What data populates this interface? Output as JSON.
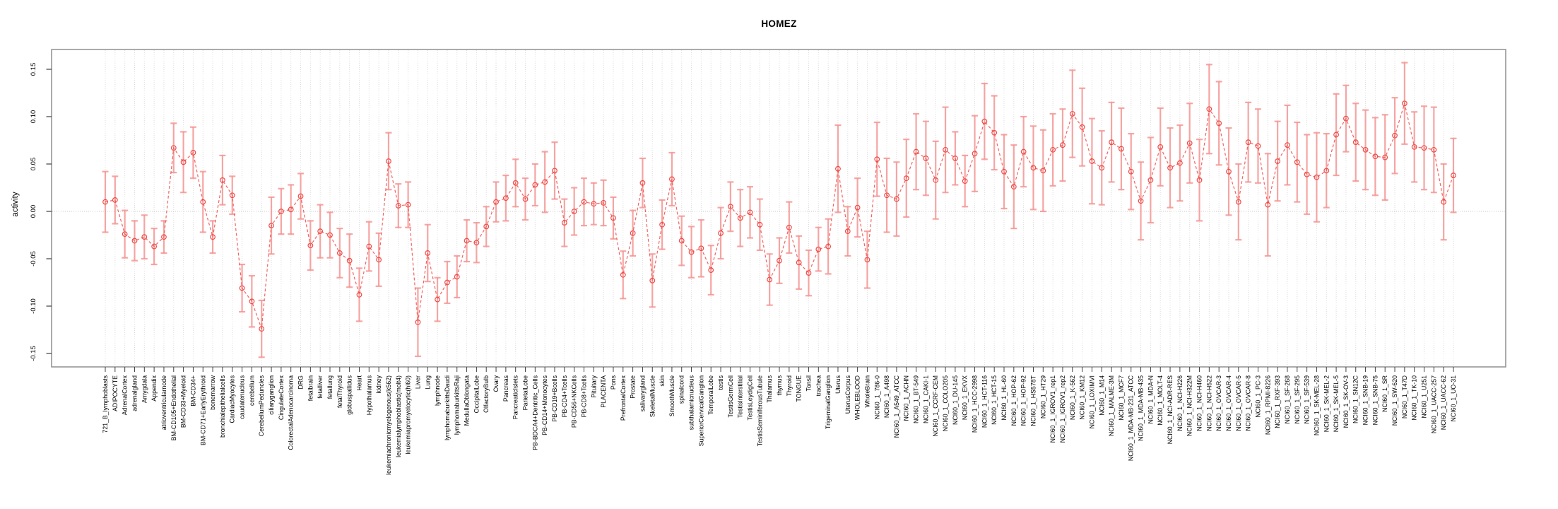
{
  "title": "HOMEZ",
  "y_axis_label": "activity",
  "chart_data": {
    "type": "line",
    "subtype": "points-with-error-bars",
    "title": "HOMEZ",
    "xlabel": "",
    "ylabel": "activity",
    "ylim": [
      -0.17,
      0.17
    ],
    "y_ticks": [
      -0.15,
      -0.1,
      -0.05,
      0.0,
      0.05,
      0.1,
      0.15
    ],
    "y_tick_labels": [
      "-0.15",
      "-0.10",
      "-0.05",
      "0.00",
      "0.05",
      "0.10",
      "0.15"
    ],
    "grid": "vertical dotted line per category; dotted horizontal line at 0",
    "legend": "none",
    "marker": "open-circle",
    "line_style": "dashed",
    "colors": {
      "point": "#ef4b46",
      "line": "#ef5350",
      "error_bar": "#f5918e",
      "grid": "#dcdcdc",
      "zero_line": "#c8c8c8",
      "box": "#8f8f8f",
      "tick": "#404040",
      "text": "#000000"
    },
    "categories": [
      "721_B_lymphoblasts",
      "ADIPOCYTE",
      "AdrenalCortex",
      "adrenalgland",
      "Amygdala",
      "Appendix",
      "atrioventricularnode",
      "BM-CD105+Endothelial",
      "BM-CD33+Myeloid",
      "BM-CD34+",
      "BM-CD71+EarlyErythroid",
      "bonemarrow",
      "bronchialepithelialcells",
      "CardiacMyocytes",
      "caudatenucleus",
      "cerebellum",
      "CerebellumPeduncles",
      "ciliaryganglion",
      "CingulateCortex",
      "ColorectalAdenocarcinoma",
      "DRG",
      "fetalbrain",
      "fetalliver",
      "fetallung",
      "fetalThyroid",
      "globuspallidus",
      "Heart",
      "Hypothalamus",
      "kidney",
      "leukemiachronicmyelogenous(k562)",
      "leukemialymphoblastic(molt4)",
      "leukemiapromyelocytic(hl60)",
      "Liver",
      "Lung",
      "lymphnode",
      "lymphomaburkittsDaudi",
      "lymphomaburkittsRaji",
      "MedullaOblongata",
      "OccipitalLobe",
      "OlfactoryBulb",
      "Ovary",
      "Pancreas",
      "PancreaticIslets",
      "ParietalLobe",
      "PB-BDCA4+Dentritic_Cells",
      "PB-CD14+Monocytes",
      "PB-CD19+Bcells",
      "PB-CD4+Tcells",
      "PB-CD56+NKCells",
      "PB-CD8+Tcells",
      "Pituitary",
      "PLACENTA",
      "Pons",
      "PrefrontalCortex",
      "Prostate",
      "salivarygland",
      "SkeletalMuscle",
      "skin",
      "SmoothMuscle",
      "spinalcord",
      "subthalamicnucleus",
      "SuperiorCervicalGanglion",
      "TemporalLobe",
      "testis",
      "TestisGermCell",
      "TestisInterstitial",
      "TestisLeydigCell",
      "TestisSeminiferousTubule",
      "Thalamus",
      "thymus",
      "Thyroid",
      "TONGUE",
      "Tonsil",
      "trachea",
      "TrigeminalGanglion",
      "Uterus",
      "UterusCorpus",
      "WHOLEBLOOD",
      "WholeBrain",
      "NCI60_1_786-0",
      "NCI60_1_A498",
      "NCI60_1_A549_ATCC",
      "NCI60_1_ACHN",
      "NCI60_1_BT-549",
      "NCI60_1_CAKI-1",
      "NCI60_1_CCRF-CEM",
      "NCI60_1_COLO205",
      "NCI60_1_DU-145",
      "NCI60_1_EKVX",
      "NCI60_1_HCC-2998",
      "NCI60_1_HCT-116",
      "NCI60_1_HCT-15",
      "NCI60_1_HL-60",
      "NCI60_1_HOP-62",
      "NCI60_1_HOP-92",
      "NCI60_1_HS578T",
      "NCI60_1_HT29",
      "NCI60_1_IGROV1_rep1",
      "NCI60_1_IGROV1_rep2",
      "NCI60_1_K-562",
      "NCI60_1_KM12",
      "NCI60_1_LOXIMVI",
      "NCI60_1_M14",
      "NCI60_1_MALME-3M",
      "NCI60_1_MCF7",
      "NCI60_1_MDA-MB-231_ATCC",
      "NCI60_1_MDA-MB-435",
      "NCI60_1_MDA-N",
      "NCI60_1_MOLT-4",
      "NCI60_1_NCI-ADR-RES",
      "NCI60_1_NCI-H226",
      "NCI60_1_NCI-H322M",
      "NCI60_1_NCI-H460",
      "NCI60_1_NCI-H522",
      "NCI60_1_OVCAR-3",
      "NCI60_1_OVCAR-4",
      "NCI60_1_OVCAR-5",
      "NCI60_1_OVCAR-8",
      "NCI60_1_PC-3",
      "NCI60_1_RPMI-8226",
      "NCI60_1_RXF-393",
      "NCI60_1_SF-268",
      "NCI60_1_SF-295",
      "NCI60_1_SF-539",
      "NCI60_1_SK-MEL-28",
      "NCI60_1_SK-MEL-2",
      "NCI60_1_SK-MEL-5",
      "NCI60_1_SK-OV-3",
      "NCI60_1_SN12C",
      "NCI60_1_SNB-19",
      "NCI60_1_SNB-75",
      "NCI60_1_SR",
      "NCI60_1_SW-620",
      "NCI60_1_T47D",
      "NCI60_1_TK-10",
      "NCI60_1_U251",
      "NCI60_1_UACC-257",
      "NCI60_1_UACC-62",
      "NCI60_1_UO-31"
    ],
    "values": [
      0.01,
      0.012,
      -0.024,
      -0.031,
      -0.027,
      -0.037,
      -0.027,
      0.067,
      0.052,
      0.062,
      0.01,
      -0.027,
      0.033,
      0.017,
      -0.081,
      -0.095,
      -0.124,
      -0.015,
      0.0,
      0.002,
      0.016,
      -0.036,
      -0.021,
      -0.025,
      -0.044,
      -0.052,
      -0.088,
      -0.037,
      -0.051,
      0.053,
      0.006,
      0.007,
      -0.117,
      -0.044,
      -0.093,
      -0.075,
      -0.069,
      -0.031,
      -0.033,
      -0.016,
      0.01,
      0.014,
      0.03,
      0.013,
      0.028,
      0.031,
      0.043,
      -0.012,
      0.0,
      0.01,
      0.008,
      0.009,
      -0.007,
      -0.067,
      -0.023,
      0.03,
      -0.073,
      -0.014,
      0.034,
      -0.031,
      -0.043,
      -0.039,
      -0.062,
      -0.023,
      0.005,
      -0.007,
      -0.001,
      -0.014,
      -0.072,
      -0.052,
      -0.017,
      -0.054,
      -0.065,
      -0.04,
      -0.037,
      0.045,
      -0.021,
      0.004,
      -0.051,
      0.055,
      0.017,
      0.013,
      0.035,
      0.063,
      0.056,
      0.033,
      0.065,
      0.056,
      0.032,
      0.061,
      0.095,
      0.083,
      0.042,
      0.026,
      0.063,
      0.046,
      0.043,
      0.065,
      0.07,
      0.103,
      0.089,
      0.053,
      0.046,
      0.073,
      0.066,
      0.042,
      0.011,
      0.033,
      0.068,
      0.046,
      0.051,
      0.072,
      0.033,
      0.108,
      0.093,
      0.042,
      0.01,
      0.073,
      0.069,
      0.007,
      0.053,
      0.07,
      0.052,
      0.039,
      0.036,
      0.043,
      0.081,
      0.098,
      0.073,
      0.065,
      0.058,
      0.057,
      0.08,
      0.114,
      0.068,
      0.067,
      0.065,
      0.01,
      0.038
    ],
    "errors": [
      0.032,
      0.025,
      0.025,
      0.021,
      0.023,
      0.019,
      0.017,
      0.026,
      0.032,
      0.027,
      0.032,
      0.017,
      0.026,
      0.02,
      0.025,
      0.027,
      0.03,
      0.03,
      0.024,
      0.026,
      0.024,
      0.026,
      0.028,
      0.024,
      0.026,
      0.028,
      0.028,
      0.026,
      0.028,
      0.03,
      0.023,
      0.024,
      0.036,
      0.03,
      0.023,
      0.022,
      0.022,
      0.022,
      0.021,
      0.021,
      0.021,
      0.024,
      0.025,
      0.022,
      0.022,
      0.032,
      0.03,
      0.025,
      0.025,
      0.025,
      0.022,
      0.024,
      0.022,
      0.025,
      0.024,
      0.026,
      0.028,
      0.026,
      0.028,
      0.026,
      0.027,
      0.03,
      0.026,
      0.027,
      0.026,
      0.03,
      0.027,
      0.027,
      0.027,
      0.024,
      0.027,
      0.028,
      0.024,
      0.023,
      0.029,
      0.046,
      0.026,
      0.031,
      0.03,
      0.039,
      0.039,
      0.039,
      0.041,
      0.04,
      0.039,
      0.041,
      0.045,
      0.028,
      0.027,
      0.04,
      0.04,
      0.039,
      0.039,
      0.044,
      0.037,
      0.044,
      0.043,
      0.038,
      0.038,
      0.046,
      0.041,
      0.045,
      0.039,
      0.042,
      0.043,
      0.04,
      0.041,
      0.045,
      0.041,
      0.042,
      0.04,
      0.042,
      0.043,
      0.047,
      0.044,
      0.046,
      0.04,
      0.042,
      0.039,
      0.054,
      0.042,
      0.042,
      0.042,
      0.042,
      0.047,
      0.039,
      0.043,
      0.035,
      0.041,
      0.042,
      0.041,
      0.045,
      0.04,
      0.043,
      0.037,
      0.044,
      0.045,
      0.04,
      0.039
    ]
  }
}
